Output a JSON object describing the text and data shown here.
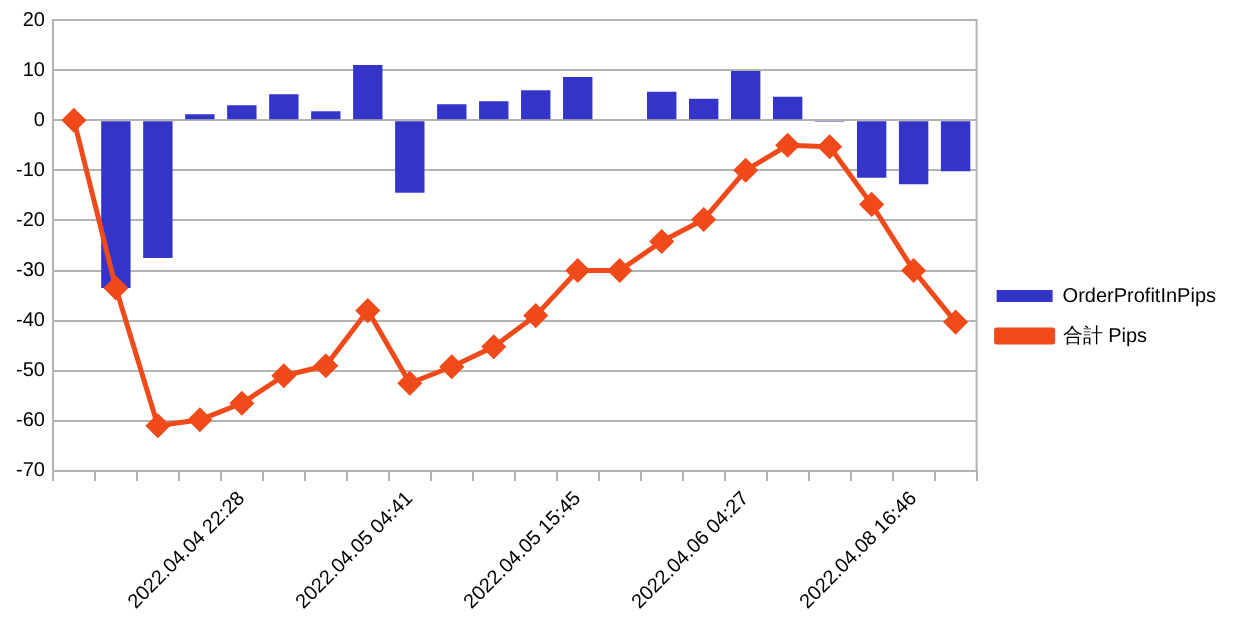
{
  "chart_data": {
    "type": "bar",
    "categories": [
      null,
      null,
      null,
      null,
      "2022.04.04 22:28",
      null,
      null,
      null,
      "2022.04.05 04:41",
      null,
      null,
      null,
      "2022.04.05 15:45",
      null,
      null,
      null,
      "2022.04.06 04:27",
      null,
      null,
      null,
      "2022.04.08 16:46",
      null
    ],
    "series": [
      {
        "name": "OrderProfitInPips",
        "color": "#3434c8",
        "values": [
          null,
          -33.5,
          -27.5,
          1.2,
          3,
          5.2,
          1.8,
          11,
          -14.5,
          3.2,
          3.8,
          6,
          8.6,
          0.2,
          5.7,
          4.3,
          9.8,
          4.7,
          -0.3,
          -11.5,
          -12.8,
          -10.2
        ]
      },
      {
        "name": "合計 Pips",
        "type": "line",
        "color": "#f04a1a",
        "marker": "diamond",
        "values": [
          0,
          -33.5,
          -61,
          -59.8,
          -56.5,
          -51,
          -49,
          -38,
          -52.5,
          -49.2,
          -45.2,
          -39,
          -30,
          -30,
          -24.2,
          -19.8,
          -10,
          -5,
          -5.3,
          -16.8,
          -30,
          -40.3
        ]
      }
    ],
    "ylim": [
      -70,
      20
    ],
    "yticks": [
      -70,
      -60,
      -50,
      -40,
      -30,
      -20,
      -10,
      0,
      10,
      20
    ],
    "grid": "y",
    "legend": "right"
  }
}
